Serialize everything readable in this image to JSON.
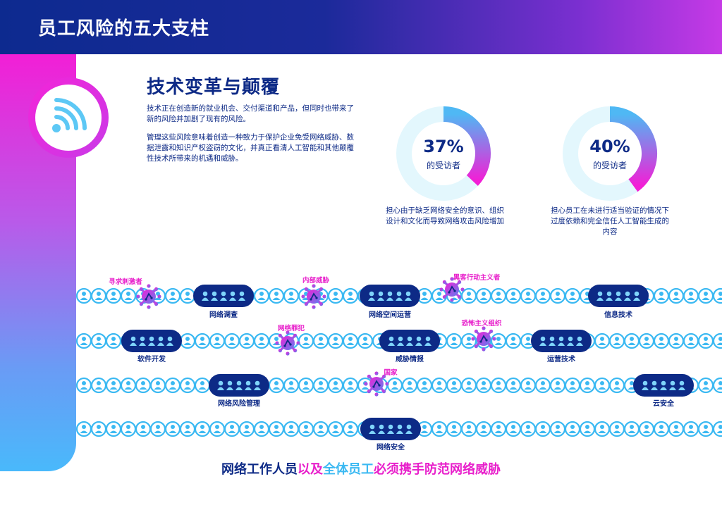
{
  "header": {
    "title": "员工风险的五大支柱"
  },
  "icon": {
    "name": "wifi-signal-icon"
  },
  "section": {
    "title": "技术变革与颠覆",
    "para1": "技术正在创造新的就业机会、交付渠道和产品，但同时也带来了新的风险并加剧了现有的风险。",
    "para2": "管理这些风险意味着创造一种致力于保护企业免受网络威胁、数据泄露和知识产权盗窃的文化，并真正看清人工智能和其他颠覆性技术所带来的机遇和威胁。"
  },
  "stats": [
    {
      "percent": "37%",
      "sub": "的受访者",
      "value": 0.37,
      "desc": "担心由于缺乏网络安全的意识、组织设计和文化而导致网络攻击风险增加"
    },
    {
      "percent": "40%",
      "sub": "的受访者",
      "value": 0.4,
      "desc": "担心员工在未进行适当验证的情况下过度依赖和完全信任人工智能生成的内容"
    }
  ],
  "pillars": [
    {
      "label": "网络调查"
    },
    {
      "label": "网络空间运营"
    },
    {
      "label": "信息技术"
    },
    {
      "label": "软件开发"
    },
    {
      "label": "威胁情报"
    },
    {
      "label": "运营技术"
    },
    {
      "label": "网络风险管理"
    },
    {
      "label": "云安全"
    },
    {
      "label": "网络安全"
    }
  ],
  "threats": [
    {
      "label": "寻求刺激者"
    },
    {
      "label": "内部威胁"
    },
    {
      "label": "黑客行动主义者"
    },
    {
      "label": "网络罪犯"
    },
    {
      "label": "恐怖主义组织"
    },
    {
      "label": "国家"
    }
  ],
  "footer": {
    "part1": "网络工作人员",
    "part2": "以及",
    "part3": "全体员工",
    "part4": "必须携手防范网络威胁"
  },
  "colors": {
    "navy": "#0d2a86",
    "magenta": "#e81fcb",
    "cyan": "#3bb9f2",
    "light_cyan": "#e3f7fd"
  }
}
